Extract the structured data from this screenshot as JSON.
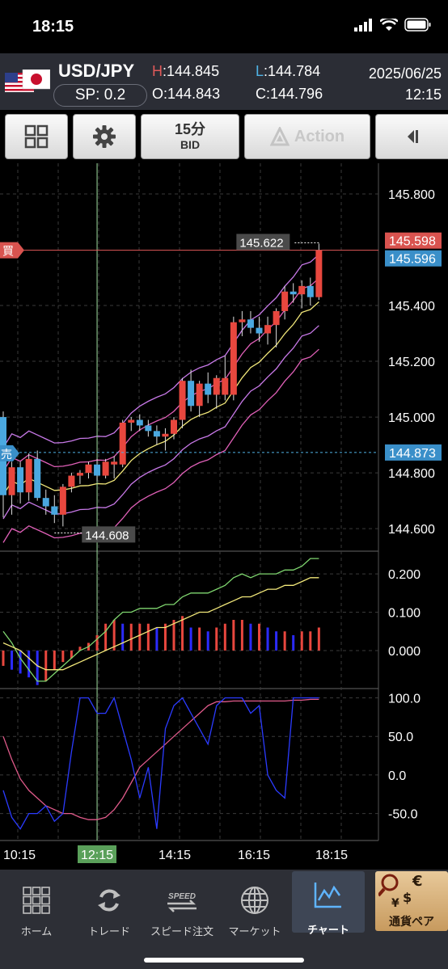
{
  "status_bar": {
    "time": "18:15"
  },
  "quote": {
    "pair": "USD/JPY",
    "spread": "SP: 0.2",
    "high_label": "H",
    "high": "144.845",
    "low_label": "L",
    "low": "144.784",
    "open_label": "O",
    "open": "144.843",
    "close_label": "C",
    "close": "144.796",
    "date": "2025/06/25",
    "time": "12:15"
  },
  "toolbar": {
    "timeframe": "15分",
    "price_type": "BID",
    "action_label": "Action"
  },
  "chart_data": {
    "type": "candlestick",
    "price_axis_labels": [
      "145.800",
      "145.400",
      "145.200",
      "145.000",
      "144.800",
      "144.600"
    ],
    "ylim": [
      144.525,
      145.91
    ],
    "buy_price": "145.598",
    "sell_price": "145.596",
    "buy_badge": "買",
    "sell_badge": "売",
    "position_price": "144.873",
    "max_annotation": "145.622",
    "min_annotation": "144.608",
    "time_labels": [
      "10:15",
      "12:15",
      "14:15",
      "16:15",
      "18:15"
    ],
    "selected_time": "12:15",
    "candles": [
      {
        "o": 145.0,
        "h": 145.02,
        "l": 144.64,
        "c": 144.72,
        "up": false
      },
      {
        "o": 144.72,
        "h": 144.84,
        "l": 144.65,
        "c": 144.82,
        "up": true
      },
      {
        "o": 144.82,
        "h": 144.84,
        "l": 144.69,
        "c": 144.73,
        "up": false
      },
      {
        "o": 144.73,
        "h": 144.87,
        "l": 144.7,
        "c": 144.85,
        "up": true
      },
      {
        "o": 144.85,
        "h": 144.88,
        "l": 144.7,
        "c": 144.71,
        "up": false
      },
      {
        "o": 144.71,
        "h": 144.74,
        "l": 144.65,
        "c": 144.68,
        "up": false
      },
      {
        "o": 144.68,
        "h": 144.72,
        "l": 144.62,
        "c": 144.65,
        "up": false
      },
      {
        "o": 144.65,
        "h": 144.76,
        "l": 144.608,
        "c": 144.75,
        "up": true
      },
      {
        "o": 144.75,
        "h": 144.8,
        "l": 144.73,
        "c": 144.79,
        "up": true
      },
      {
        "o": 144.79,
        "h": 144.81,
        "l": 144.76,
        "c": 144.8,
        "up": true
      },
      {
        "o": 144.8,
        "h": 144.84,
        "l": 144.78,
        "c": 144.83,
        "up": true
      },
      {
        "o": 144.83,
        "h": 144.85,
        "l": 144.77,
        "c": 144.79,
        "up": false
      },
      {
        "o": 144.79,
        "h": 144.85,
        "l": 144.78,
        "c": 144.84,
        "up": true
      },
      {
        "o": 144.84,
        "h": 144.86,
        "l": 144.78,
        "c": 144.83,
        "up": true
      },
      {
        "o": 144.83,
        "h": 144.99,
        "l": 144.82,
        "c": 144.98,
        "up": true
      },
      {
        "o": 144.98,
        "h": 145.0,
        "l": 144.95,
        "c": 144.99,
        "up": true
      },
      {
        "o": 144.99,
        "h": 145.01,
        "l": 144.95,
        "c": 144.97,
        "up": false
      },
      {
        "o": 144.97,
        "h": 144.99,
        "l": 144.93,
        "c": 144.95,
        "up": false
      },
      {
        "o": 144.95,
        "h": 144.97,
        "l": 144.9,
        "c": 144.93,
        "up": false
      },
      {
        "o": 144.93,
        "h": 144.96,
        "l": 144.88,
        "c": 144.94,
        "up": true
      },
      {
        "o": 144.94,
        "h": 145.0,
        "l": 144.92,
        "c": 144.99,
        "up": true
      },
      {
        "o": 144.99,
        "h": 145.14,
        "l": 144.96,
        "c": 145.13,
        "up": true
      },
      {
        "o": 145.13,
        "h": 145.17,
        "l": 145.02,
        "c": 145.04,
        "up": false
      },
      {
        "o": 145.04,
        "h": 145.13,
        "l": 145.0,
        "c": 145.12,
        "up": true
      },
      {
        "o": 145.12,
        "h": 145.16,
        "l": 145.05,
        "c": 145.08,
        "up": false
      },
      {
        "o": 145.08,
        "h": 145.15,
        "l": 145.03,
        "c": 145.14,
        "up": true
      },
      {
        "o": 145.14,
        "h": 145.22,
        "l": 145.06,
        "c": 145.08,
        "up": true
      },
      {
        "o": 145.08,
        "h": 145.36,
        "l": 145.06,
        "c": 145.34,
        "up": true
      },
      {
        "o": 145.34,
        "h": 145.38,
        "l": 145.29,
        "c": 145.35,
        "up": true
      },
      {
        "o": 145.35,
        "h": 145.38,
        "l": 145.3,
        "c": 145.32,
        "up": false
      },
      {
        "o": 145.32,
        "h": 145.36,
        "l": 145.27,
        "c": 145.3,
        "up": false
      },
      {
        "o": 145.3,
        "h": 145.36,
        "l": 145.26,
        "c": 145.33,
        "up": true
      },
      {
        "o": 145.33,
        "h": 145.39,
        "l": 145.25,
        "c": 145.38,
        "up": true
      },
      {
        "o": 145.38,
        "h": 145.47,
        "l": 145.35,
        "c": 145.45,
        "up": true
      },
      {
        "o": 145.45,
        "h": 145.48,
        "l": 145.41,
        "c": 145.44,
        "up": false
      },
      {
        "o": 145.44,
        "h": 145.49,
        "l": 145.39,
        "c": 145.47,
        "up": true
      },
      {
        "o": 145.47,
        "h": 145.5,
        "l": 145.4,
        "c": 145.43,
        "up": false
      },
      {
        "o": 145.43,
        "h": 145.622,
        "l": 145.42,
        "c": 145.598,
        "up": true
      }
    ],
    "macd_axis_labels": [
      "0.200",
      "0.100",
      "0.000"
    ],
    "macd_ylim": [
      -0.095,
      0.255
    ],
    "macd_hist": [
      -0.04,
      -0.05,
      -0.06,
      -0.07,
      -0.09,
      -0.08,
      -0.05,
      -0.03,
      -0.02,
      0.01,
      0.02,
      0.04,
      0.07,
      0.08,
      0.07,
      0.07,
      0.07,
      0.07,
      0.06,
      0.07,
      0.08,
      0.09,
      0.06,
      0.06,
      0.05,
      0.06,
      0.07,
      0.08,
      0.08,
      0.07,
      0.07,
      0.06,
      0.05,
      0.05,
      0.04,
      0.05,
      0.05,
      0.06
    ],
    "macd_line": [
      0.05,
      0.02,
      -0.02,
      -0.05,
      -0.08,
      -0.08,
      -0.06,
      -0.04,
      -0.02,
      0.0,
      0.01,
      0.03,
      0.05,
      0.08,
      0.1,
      0.1,
      0.11,
      0.11,
      0.11,
      0.12,
      0.12,
      0.14,
      0.15,
      0.15,
      0.15,
      0.16,
      0.17,
      0.19,
      0.2,
      0.19,
      0.2,
      0.2,
      0.2,
      0.21,
      0.21,
      0.22,
      0.24,
      0.24
    ],
    "signal_line": [
      0.02,
      0.01,
      0.0,
      -0.02,
      -0.04,
      -0.05,
      -0.05,
      -0.05,
      -0.04,
      -0.03,
      -0.02,
      -0.01,
      0.0,
      0.01,
      0.02,
      0.03,
      0.04,
      0.05,
      0.06,
      0.06,
      0.07,
      0.08,
      0.09,
      0.1,
      0.1,
      0.11,
      0.12,
      0.13,
      0.14,
      0.14,
      0.15,
      0.16,
      0.16,
      0.17,
      0.17,
      0.18,
      0.19,
      0.19
    ],
    "stoch_axis_labels": [
      "100.0",
      "50.0",
      "0.0",
      "-50.0"
    ],
    "stoch_ylim": [
      -85,
      110
    ],
    "stoch_k": [
      -20,
      -55,
      -70,
      -50,
      -50,
      -40,
      -60,
      -50,
      30,
      100,
      100,
      80,
      80,
      100,
      60,
      20,
      -30,
      10,
      -70,
      60,
      90,
      100,
      80,
      60,
      40,
      90,
      100,
      100,
      100,
      80,
      90,
      0,
      -20,
      -30,
      100,
      100,
      100,
      100
    ],
    "stoch_d": [
      50,
      20,
      -5,
      -20,
      -30,
      -40,
      -45,
      -50,
      -50,
      -55,
      -58,
      -58,
      -55,
      -45,
      -30,
      -10,
      10,
      20,
      30,
      40,
      50,
      60,
      70,
      80,
      90,
      95,
      95,
      96,
      96,
      96,
      96,
      96,
      96,
      96,
      97,
      97,
      98,
      98
    ]
  },
  "nav": {
    "items": [
      {
        "label": "ホーム"
      },
      {
        "label": "トレード"
      },
      {
        "label": "スピード注文",
        "icon_text": "SPEED"
      },
      {
        "label": "マーケット"
      },
      {
        "label": "チャート"
      },
      {
        "label": "通貨ペア"
      }
    ]
  },
  "colors": {
    "bull": "#e8473e",
    "bear": "#4aa8e0",
    "buy_line": "#e05a5a",
    "sell_line": "#4fb3e6"
  }
}
